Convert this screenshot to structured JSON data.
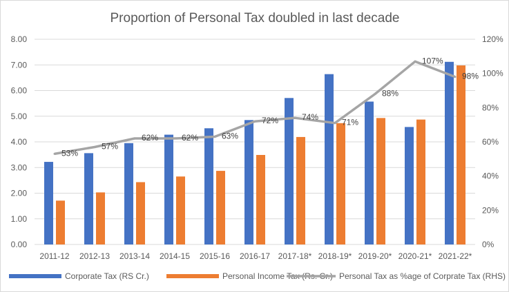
{
  "chart_data": {
    "type": "bar",
    "title": "Proportion of Personal Tax doubled in last decade",
    "categories": [
      "2011-12",
      "2012-13",
      "2013-14",
      "2014-15",
      "2015-16",
      "2016-17",
      "2017-18*",
      "2018-19*",
      "2019-20*",
      "2020-21*",
      "2021-22*"
    ],
    "series": [
      {
        "name": "Corporate Tax (RS Cr.)",
        "kind": "bar",
        "axis": "left",
        "color": "#4472C4",
        "values": [
          3.22,
          3.56,
          3.95,
          4.28,
          4.53,
          4.85,
          5.71,
          6.64,
          5.57,
          4.58,
          7.12
        ]
      },
      {
        "name": "Personal Income Tax (Rs. Cr.)",
        "kind": "bar",
        "axis": "left",
        "color": "#ED7D31",
        "values": [
          1.71,
          2.03,
          2.43,
          2.65,
          2.87,
          3.49,
          4.19,
          4.73,
          4.93,
          4.87,
          6.98
        ]
      },
      {
        "name": "Personal Tax as %age of Corprate Tax (RHS)",
        "kind": "line",
        "axis": "right",
        "color": "#A5A5A5",
        "values": [
          53,
          57,
          62,
          62,
          63,
          72,
          74,
          71,
          88,
          107,
          98
        ],
        "labels": [
          "53%",
          "57%",
          "62%",
          "62%",
          "63%",
          "72%",
          "74%",
          "71%",
          "88%",
          "107%",
          "98%"
        ]
      }
    ],
    "y_left": {
      "min": 0,
      "max": 8,
      "ticks": [
        "0.00",
        "1.00",
        "2.00",
        "3.00",
        "4.00",
        "5.00",
        "6.00",
        "7.00",
        "8.00"
      ]
    },
    "y_right": {
      "min": 0,
      "max": 120,
      "ticks": [
        "0%",
        "20%",
        "40%",
        "60%",
        "80%",
        "100%",
        "120%"
      ]
    },
    "grid": true,
    "legend": "bottom"
  }
}
